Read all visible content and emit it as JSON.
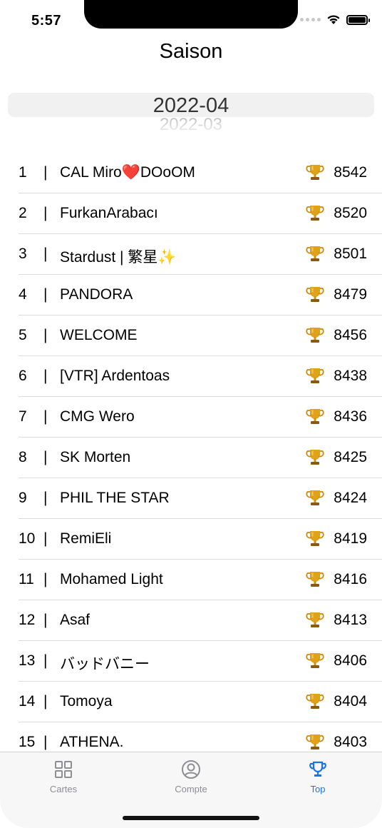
{
  "status_bar": {
    "time": "5:57"
  },
  "nav": {
    "title": "Saison"
  },
  "picker": {
    "selected": "2022-04",
    "next": "2022-03"
  },
  "leaderboard": [
    {
      "rank": "1",
      "sep": "|",
      "name": "CAL Miro❤️DOoOM",
      "score": "8542"
    },
    {
      "rank": "2",
      "sep": "|",
      "name": "FurkanArabacı",
      "score": "8520"
    },
    {
      "rank": "3",
      "sep": "|",
      "name": "Stardust | 繁星✨",
      "score": "8501"
    },
    {
      "rank": "4",
      "sep": "|",
      "name": "PANDORA",
      "score": "8479"
    },
    {
      "rank": "5",
      "sep": "|",
      "name": "WELCOME",
      "score": "8456"
    },
    {
      "rank": "6",
      "sep": "|",
      "name": "[VTR] Ardentoas",
      "score": "8438"
    },
    {
      "rank": "7",
      "sep": "|",
      "name": "CMG Wero",
      "score": "8436"
    },
    {
      "rank": "8",
      "sep": "|",
      "name": "SK Morten",
      "score": "8425"
    },
    {
      "rank": "9",
      "sep": "|",
      "name": "PHIL THE STAR",
      "score": "8424"
    },
    {
      "rank": "10",
      "sep": "|",
      "name": "RemiEli",
      "score": "8419"
    },
    {
      "rank": "11",
      "sep": "|",
      "name": "Mohamed Light",
      "score": "8416"
    },
    {
      "rank": "12",
      "sep": "|",
      "name": "Asaf",
      "score": "8413"
    },
    {
      "rank": "13",
      "sep": "|",
      "name": "バッドバニー",
      "score": "8406"
    },
    {
      "rank": "14",
      "sep": "|",
      "name": "Tomoya",
      "score": "8404"
    },
    {
      "rank": "15",
      "sep": "|",
      "name": "ATHENA.",
      "score": "8403"
    }
  ],
  "tabs": [
    {
      "label": "Cartes",
      "icon": "grid-icon",
      "active": false
    },
    {
      "label": "Compte",
      "icon": "person-circle-icon",
      "active": false
    },
    {
      "label": "Top",
      "icon": "trophy-icon",
      "active": true
    }
  ],
  "colors": {
    "accent": "#1a73e8",
    "trophy": "#e0a21b",
    "inactive_tab": "#8e8e93"
  }
}
